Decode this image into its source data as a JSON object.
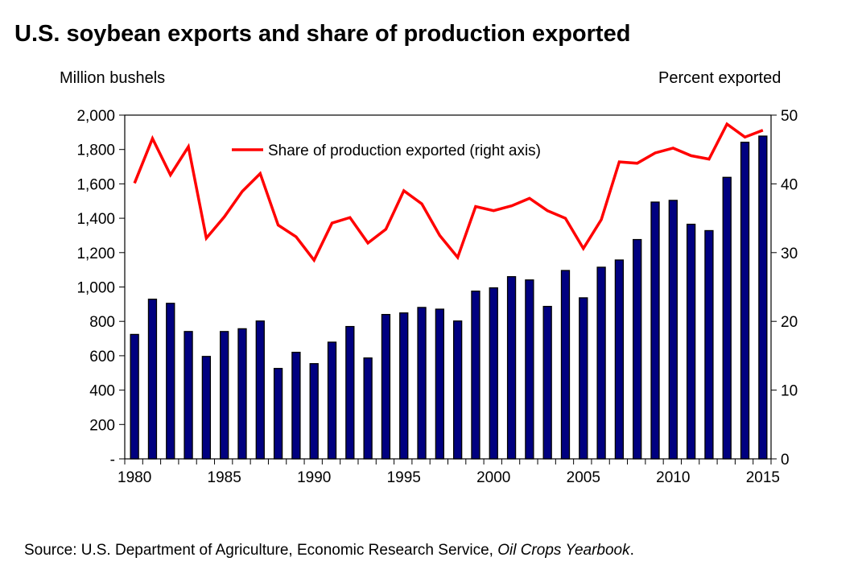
{
  "chart_data": {
    "type": "bar+line",
    "title": "U.S. soybean exports and share of production exported",
    "ylabel_left": "Million bushels",
    "ylabel_right": "Percent exported",
    "ylim_left": [
      0,
      2000
    ],
    "ylim_right": [
      0,
      50
    ],
    "yticks_left": [
      "-",
      "200",
      "400",
      "600",
      "800",
      "1,000",
      "1,200",
      "1,400",
      "1,600",
      "1,800",
      "2,000"
    ],
    "yticks_right": [
      "0",
      "10",
      "20",
      "30",
      "40",
      "50"
    ],
    "xticks": [
      "1980",
      "1985",
      "1990",
      "1995",
      "2000",
      "2005",
      "2010",
      "2015"
    ],
    "categories": [
      1980,
      1981,
      1982,
      1983,
      1984,
      1985,
      1986,
      1987,
      1988,
      1989,
      1990,
      1991,
      1992,
      1993,
      1994,
      1995,
      1996,
      1997,
      1998,
      1999,
      2000,
      2001,
      2002,
      2003,
      2004,
      2005,
      2006,
      2007,
      2008,
      2009,
      2010,
      2011,
      2012,
      2013,
      2014,
      2015
    ],
    "series": [
      {
        "name": "Exports (million bushels)",
        "type": "bar",
        "axis": "left",
        "color": "#000080",
        "values": [
          724,
          929,
          905,
          741,
          596,
          741,
          757,
          802,
          526,
          620,
          554,
          679,
          770,
          587,
          840,
          849,
          881,
          871,
          802,
          976,
          995,
          1060,
          1041,
          887,
          1096,
          937,
          1115,
          1157,
          1276,
          1494,
          1504,
          1365,
          1328,
          1638,
          1842,
          1878
        ]
      },
      {
        "name": "Share of production exported (right axis)",
        "type": "line",
        "axis": "right",
        "color": "#ff0000",
        "values": [
          40.1,
          46.6,
          41.3,
          45.4,
          32.1,
          35.2,
          38.9,
          41.5,
          34.0,
          32.3,
          28.9,
          34.3,
          35.1,
          31.4,
          33.4,
          39.0,
          37.1,
          32.5,
          29.3,
          36.7,
          36.1,
          36.8,
          37.9,
          36.1,
          35.0,
          30.6,
          34.8,
          43.2,
          43.0,
          44.5,
          45.2,
          44.1,
          43.6,
          48.7,
          46.8,
          47.8
        ]
      }
    ],
    "legend": {
      "label": "Share of production exported (right axis)",
      "placement": "top-center"
    }
  },
  "source": {
    "prefix": "Source:  U.S. Department of Agriculture,  Economic Research Service, ",
    "italic": "Oil Crops Yearbook",
    "suffix": "."
  }
}
